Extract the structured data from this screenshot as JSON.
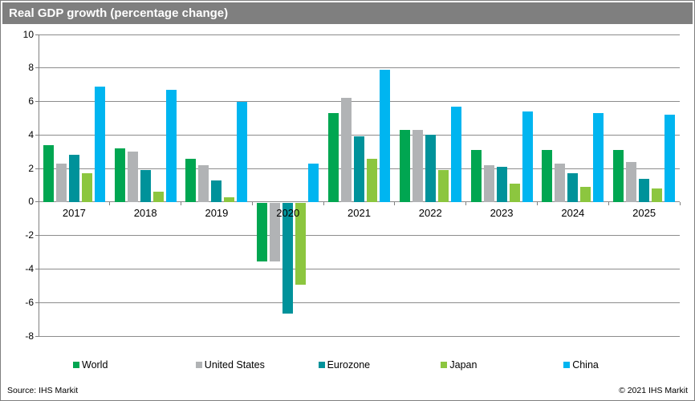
{
  "title": "Real GDP growth (percentage change)",
  "footer": {
    "source": "Source:  IHS Markit",
    "copyright": "© 2021  IHS Markit"
  },
  "colors": {
    "titlebar_background": "#7f7f7f",
    "titlebar_text": "#ffffff",
    "gridline": "#8c8c8c",
    "axis": "#808080",
    "plot_background": "#ffffff"
  },
  "chart_data": {
    "type": "bar",
    "title": "Real GDP growth (percentage change)",
    "categories": [
      "2017",
      "2018",
      "2019",
      "2020",
      "2021",
      "2022",
      "2023",
      "2024",
      "2025"
    ],
    "series": [
      {
        "name": "World",
        "color": "#00A651",
        "values": [
          3.4,
          3.2,
          2.6,
          -3.5,
          5.3,
          4.3,
          3.1,
          3.1,
          3.1
        ]
      },
      {
        "name": "United States",
        "color": "#B1B3B5",
        "values": [
          2.3,
          3.0,
          2.2,
          -3.5,
          6.2,
          4.3,
          2.2,
          2.3,
          2.4
        ]
      },
      {
        "name": "Eurozone",
        "color": "#00929A",
        "values": [
          2.8,
          1.9,
          1.3,
          -6.6,
          3.9,
          4.0,
          2.1,
          1.7,
          1.4
        ]
      },
      {
        "name": "Japan",
        "color": "#8CC63F",
        "values": [
          1.7,
          0.6,
          0.3,
          -4.9,
          2.6,
          1.9,
          1.1,
          0.9,
          0.8
        ]
      },
      {
        "name": "China",
        "color": "#00B5F0",
        "values": [
          6.9,
          6.7,
          6.0,
          2.3,
          7.9,
          5.7,
          5.4,
          5.3,
          5.2
        ]
      }
    ],
    "xlabel": "",
    "ylabel": "",
    "ylim": [
      -8,
      10
    ],
    "ytick_step": 2,
    "grid": true,
    "legend_position": "bottom"
  }
}
